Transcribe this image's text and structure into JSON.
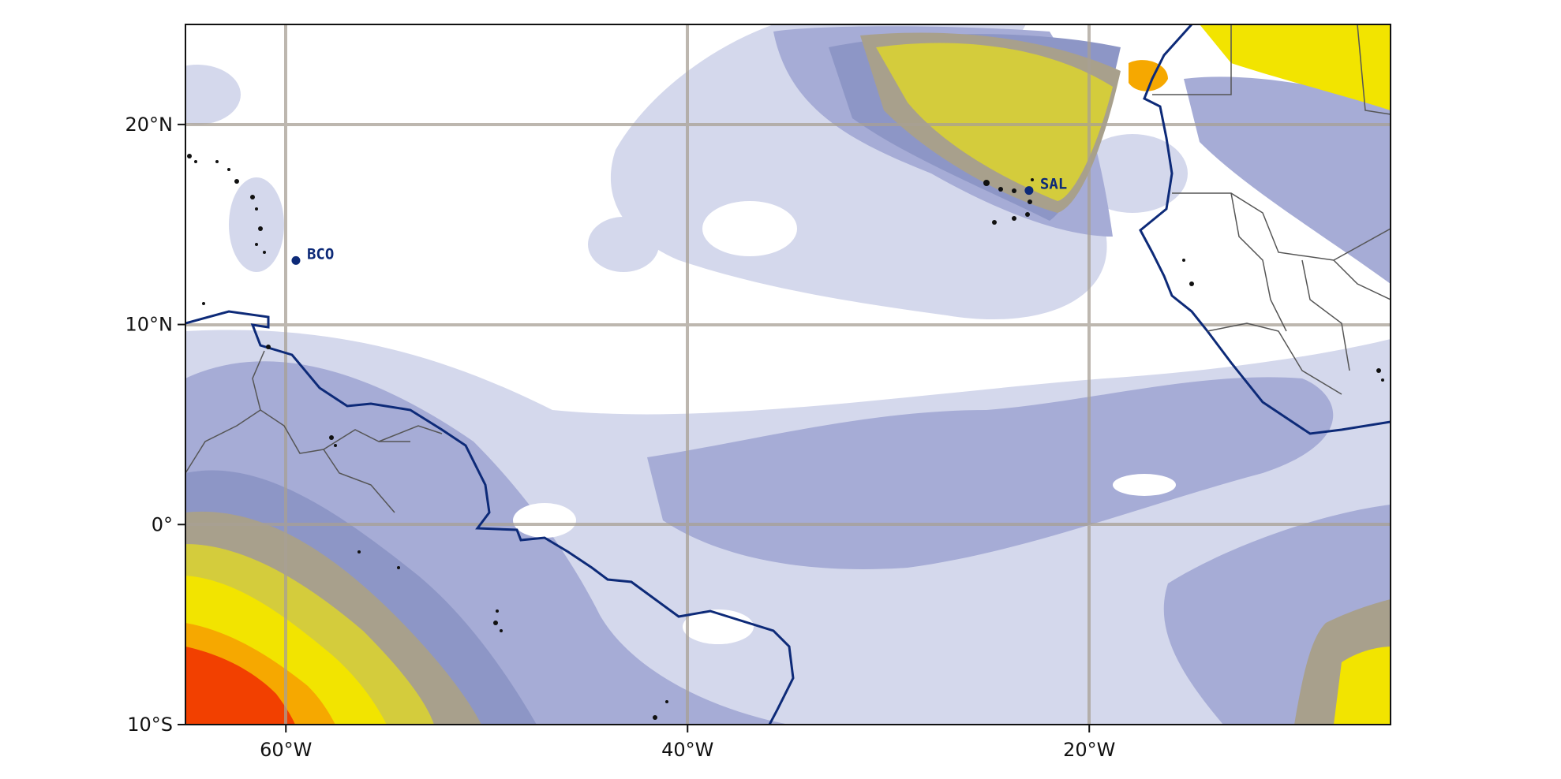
{
  "map": {
    "projection": "PlateCarree",
    "extent": {
      "lon_min": -65,
      "lon_max": -5,
      "lat_min": -10,
      "lat_max": 25
    },
    "gridlines": true,
    "gridline_color": "#a8a095",
    "coast_color": "#0d2a78",
    "border_color": "#555555",
    "fill_palette": [
      "#d4d8ec",
      "#a6acd6",
      "#8d96c6",
      "#a8a08c",
      "#d4cc3c",
      "#f2e400",
      "#f6a800",
      "#f24000"
    ],
    "lon_ticks": [
      {
        "value": -60,
        "label": "60°W"
      },
      {
        "value": -40,
        "label": "40°W"
      },
      {
        "value": -20,
        "label": "20°W"
      }
    ],
    "lat_ticks": [
      {
        "value": 20,
        "label": "20°N"
      },
      {
        "value": 10,
        "label": "10°N"
      },
      {
        "value": 0,
        "label": "0°"
      },
      {
        "value": -10,
        "label": "10°S"
      }
    ]
  },
  "stations": [
    {
      "label": "BCO",
      "lon": -59.5,
      "lat": 13.2,
      "color": "#0d2a78"
    },
    {
      "label": "SAL",
      "lon": -23.0,
      "lat": 16.7,
      "color": "#0d2a78"
    }
  ]
}
